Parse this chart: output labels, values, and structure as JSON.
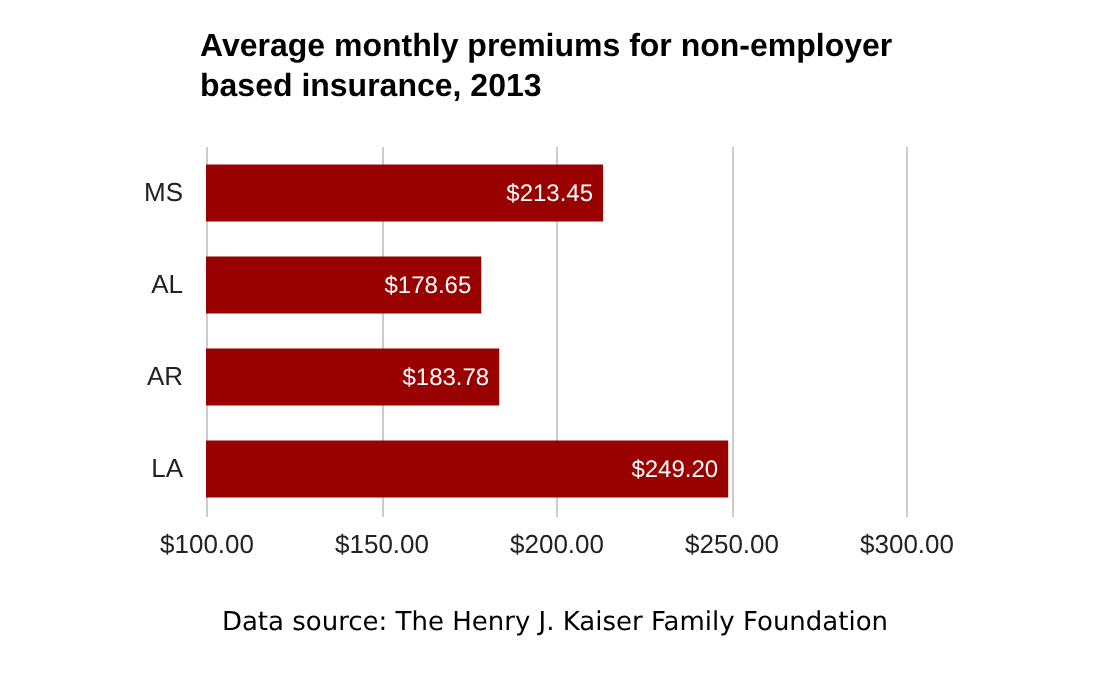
{
  "chart_data": {
    "type": "bar",
    "orientation": "horizontal",
    "title": "Average monthly premiums for non-employer based insurance, 2013",
    "categories": [
      "MS",
      "AL",
      "AR",
      "LA"
    ],
    "values": [
      213.45,
      178.65,
      183.78,
      249.2
    ],
    "value_labels": [
      "$213.45",
      "$178.65",
      "$183.78",
      "$249.20"
    ],
    "color": "#990000",
    "xlim": [
      100,
      300
    ],
    "xticks": [
      {
        "value": 100,
        "label": "$100.00"
      },
      {
        "value": 150,
        "label": "$150.00"
      },
      {
        "value": 200,
        "label": "$200.00"
      },
      {
        "value": 250,
        "label": "$250.00"
      },
      {
        "value": 300,
        "label": "$300.00"
      }
    ],
    "grid": true,
    "annotations": [
      "Data source: The Henry J. Kaiser Family Foundation"
    ]
  }
}
